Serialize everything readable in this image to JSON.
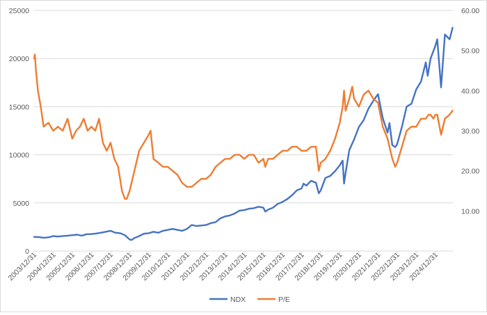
{
  "chart_data": {
    "type": "line",
    "title": "",
    "xlabel": "",
    "ylabel": "",
    "y2label": "",
    "grid": true,
    "legend_position": "bottom",
    "x_tick_labels": [
      "2003/12/31",
      "2004/12/31",
      "2005/12/31",
      "2006/12/31",
      "2007/12/31",
      "2008/12/31",
      "2009/12/31",
      "2010/12/31",
      "2011/12/31",
      "2012/12/31",
      "2013/12/31",
      "2014/12/31",
      "2015/12/31",
      "2016/12/31",
      "2017/12/31",
      "2018/12/31",
      "2019/12/31",
      "2020/12/31",
      "2021/12/31",
      "2022/12/31",
      "2023/12/31",
      "2024/12/31"
    ],
    "left_axis": {
      "ylim": [
        0,
        25000
      ],
      "ticks": [
        "0",
        "5000",
        "10000",
        "15000",
        "20000",
        "25000"
      ]
    },
    "right_axis": {
      "ylim": [
        0,
        60
      ],
      "ticks": [
        "10.00",
        "20.00",
        "30.00",
        "40.00",
        "50.00",
        "60.00"
      ]
    },
    "series": [
      {
        "name": "NDX",
        "axis": "left",
        "color": "#4472c4",
        "x": [
          2004.0,
          2004.25,
          2004.5,
          2004.75,
          2005.0,
          2005.25,
          2005.5,
          2005.75,
          2006.0,
          2006.25,
          2006.5,
          2006.75,
          2007.0,
          2007.25,
          2007.5,
          2007.75,
          2008.0,
          2008.25,
          2008.5,
          2008.75,
          2009.0,
          2009.1,
          2009.25,
          2009.5,
          2009.75,
          2010.0,
          2010.25,
          2010.5,
          2010.75,
          2011.0,
          2011.25,
          2011.5,
          2011.75,
          2012.0,
          2012.25,
          2012.5,
          2012.75,
          2013.0,
          2013.25,
          2013.5,
          2013.75,
          2014.0,
          2014.25,
          2014.5,
          2014.75,
          2015.0,
          2015.25,
          2015.5,
          2015.75,
          2016.0,
          2016.1,
          2016.25,
          2016.5,
          2016.75,
          2017.0,
          2017.25,
          2017.5,
          2017.75,
          2018.0,
          2018.1,
          2018.25,
          2018.5,
          2018.75,
          2018.9,
          2019.0,
          2019.25,
          2019.5,
          2019.75,
          2020.0,
          2020.15,
          2020.22,
          2020.3,
          2020.5,
          2020.75,
          2021.0,
          2021.25,
          2021.5,
          2021.75,
          2022.0,
          2022.25,
          2022.5,
          2022.6,
          2022.75,
          2022.9,
          2023.0,
          2023.25,
          2023.5,
          2023.75,
          2024.0,
          2024.25,
          2024.5,
          2024.6,
          2024.75,
          2025.0,
          2025.1,
          2025.3,
          2025.5,
          2025.75,
          2025.9
        ],
        "values": [
          1470,
          1450,
          1380,
          1420,
          1550,
          1500,
          1560,
          1600,
          1650,
          1700,
          1600,
          1750,
          1760,
          1820,
          1900,
          2000,
          2100,
          1900,
          1860,
          1650,
          1200,
          1150,
          1350,
          1550,
          1800,
          1850,
          2000,
          1900,
          2100,
          2200,
          2300,
          2200,
          2100,
          2300,
          2700,
          2600,
          2650,
          2700,
          2900,
          3000,
          3400,
          3600,
          3700,
          3900,
          4200,
          4250,
          4400,
          4450,
          4600,
          4500,
          4100,
          4300,
          4500,
          4900,
          5100,
          5400,
          5800,
          6300,
          6500,
          7000,
          6800,
          7300,
          7100,
          6000,
          6300,
          7600,
          7800,
          8300,
          8900,
          9400,
          7000,
          8100,
          10500,
          11600,
          12900,
          13600,
          14800,
          15600,
          16300,
          13800,
          12300,
          13300,
          11000,
          10800,
          11100,
          12900,
          15000,
          15300,
          16800,
          17600,
          19600,
          18200,
          20000,
          21300,
          22000,
          17000,
          22500,
          22000,
          23200
        ]
      },
      {
        "name": "P/E",
        "axis": "right",
        "color": "#ed7d31",
        "x": [
          2004.0,
          2004.04,
          2004.1,
          2004.2,
          2004.35,
          2004.5,
          2004.75,
          2005.0,
          2005.25,
          2005.5,
          2005.75,
          2006.0,
          2006.2,
          2006.4,
          2006.6,
          2006.8,
          2007.0,
          2007.2,
          2007.4,
          2007.6,
          2007.8,
          2008.0,
          2008.2,
          2008.4,
          2008.5,
          2008.6,
          2008.75,
          2008.85,
          2009.0,
          2009.25,
          2009.5,
          2009.75,
          2010.0,
          2010.1,
          2010.25,
          2010.5,
          2010.75,
          2011.0,
          2011.25,
          2011.5,
          2011.75,
          2012.0,
          2012.25,
          2012.5,
          2012.75,
          2013.0,
          2013.25,
          2013.5,
          2013.75,
          2014.0,
          2014.25,
          2014.5,
          2014.75,
          2015.0,
          2015.25,
          2015.5,
          2015.75,
          2016.0,
          2016.1,
          2016.25,
          2016.5,
          2016.75,
          2017.0,
          2017.25,
          2017.5,
          2017.75,
          2018.0,
          2018.25,
          2018.5,
          2018.75,
          2018.9,
          2019.0,
          2019.25,
          2019.5,
          2019.75,
          2020.0,
          2020.15,
          2020.22,
          2020.3,
          2020.5,
          2020.65,
          2020.75,
          2021.0,
          2021.25,
          2021.5,
          2021.75,
          2022.0,
          2022.25,
          2022.5,
          2022.75,
          2022.9,
          2023.0,
          2023.25,
          2023.5,
          2023.75,
          2024.0,
          2024.25,
          2024.5,
          2024.65,
          2024.75,
          2024.9,
          2025.0,
          2025.1,
          2025.3,
          2025.5,
          2025.75,
          2025.9
        ],
        "values": [
          48,
          49,
          45,
          40,
          36,
          31,
          32,
          30,
          31,
          30,
          33,
          28,
          30,
          31,
          33,
          30,
          31,
          30,
          33,
          27,
          25,
          27,
          23,
          21,
          18,
          15,
          13,
          13,
          15,
          20,
          25,
          27,
          29,
          30,
          23,
          22,
          21,
          21,
          20,
          19,
          17,
          16,
          16,
          17,
          18,
          18,
          19,
          21,
          22,
          23,
          23,
          24,
          24,
          23,
          24,
          24,
          22,
          23,
          21,
          23,
          23,
          24,
          25,
          25,
          26,
          26,
          25,
          25,
          26,
          26,
          20,
          22,
          23,
          25,
          28,
          32,
          36,
          40,
          35,
          38,
          41,
          38,
          36,
          39,
          40,
          38,
          37,
          31,
          28,
          23,
          21,
          22,
          26,
          30,
          31,
          31,
          33,
          33,
          34,
          34,
          33,
          34,
          34,
          29,
          33,
          34,
          35
        ]
      }
    ]
  }
}
